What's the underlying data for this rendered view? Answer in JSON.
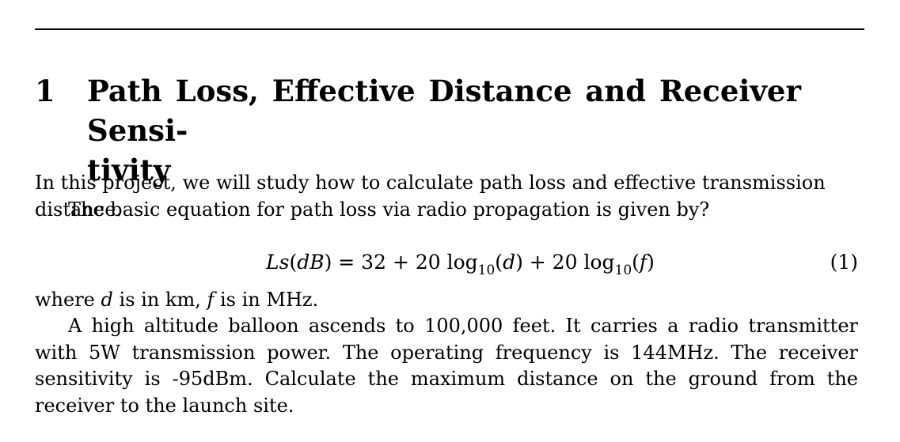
{
  "section": {
    "number": "1",
    "title_line1": "Path Loss, Effective Distance and Receiver Sensi-",
    "title_line2": "tivity"
  },
  "paragraphs": {
    "intro": "In this project, we will study how to calculate path loss and effective transmission distance.",
    "basic_eq": "The basic equation for path loss via radio propagation is given by?"
  },
  "equation": {
    "lhs": "Ls",
    "lhs_arg": "(dB)",
    "rhs_part1": " = 32 + 20 log",
    "sub1": "10",
    "arg1": "(d)",
    "rhs_part2": " + 20 log",
    "sub2": "10",
    "arg2": "(f)",
    "number": "(1)"
  },
  "where_line": {
    "prefix": "where ",
    "var_d": "d",
    "mid": " is in km, ",
    "var_f": "f",
    "suffix": " is in MHz."
  },
  "problem": "A high altitude balloon ascends to 100,000 feet. It carries a radio transmitter with 5W transmission power. The operating frequency is 144MHz. The receiver sensitivity is -95dBm. Calculate the maximum distance on the ground from the receiver to the launch site."
}
